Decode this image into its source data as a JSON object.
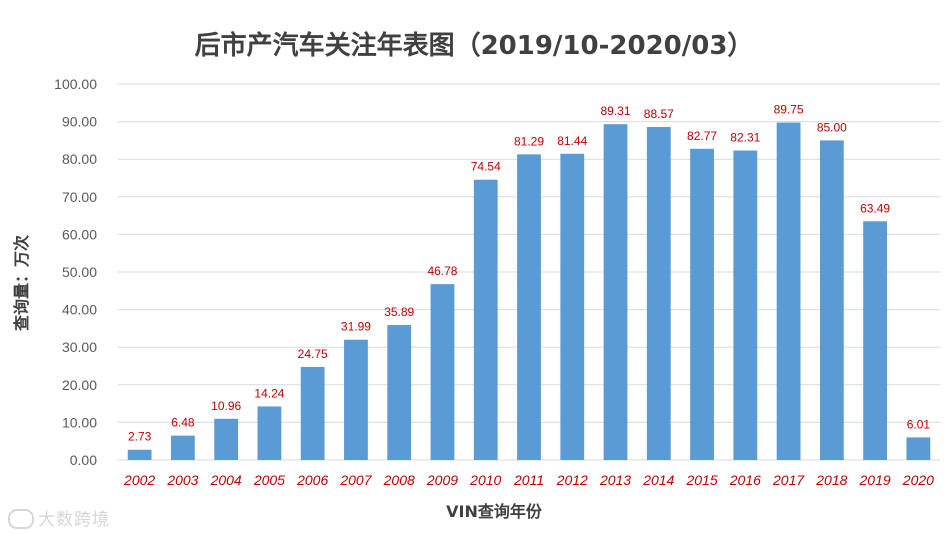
{
  "chart_data": {
    "type": "bar",
    "title": "后市产汽车关注年表图（2019/10-2020/03）",
    "xlabel": "VIN查询年份",
    "ylabel": "查询量：万次",
    "categories": [
      "2002",
      "2003",
      "2004",
      "2005",
      "2006",
      "2007",
      "2008",
      "2009",
      "2010",
      "2011",
      "2012",
      "2013",
      "2014",
      "2015",
      "2016",
      "2017",
      "2018",
      "2019",
      "2020"
    ],
    "values": [
      2.73,
      6.48,
      10.96,
      14.24,
      24.75,
      31.99,
      35.89,
      46.78,
      74.54,
      81.29,
      81.44,
      89.31,
      88.57,
      82.77,
      82.31,
      89.75,
      85.0,
      63.49,
      6.01
    ],
    "value_labels": [
      "2.73",
      "6.48",
      "10.96",
      "14.24",
      "24.75",
      "31.99",
      "35.89",
      "46.78",
      "74.54",
      "81.29",
      "81.44",
      "89.31",
      "88.57",
      "82.77",
      "82.31",
      "89.75",
      "85.00",
      "63.49",
      "6.01"
    ],
    "ylim": [
      0,
      100
    ],
    "yticks": [
      "0.00",
      "10.00",
      "20.00",
      "30.00",
      "40.00",
      "50.00",
      "60.00",
      "70.00",
      "80.00",
      "90.00",
      "100.00"
    ],
    "grid": true,
    "colors": {
      "bar": "#5b9bd5",
      "data_label": "#c00000",
      "category_label": "#c00000",
      "axis_text": "#595959",
      "title": "#404040",
      "grid": "#d9d9d9"
    }
  },
  "watermark": {
    "text": "大数跨境"
  }
}
